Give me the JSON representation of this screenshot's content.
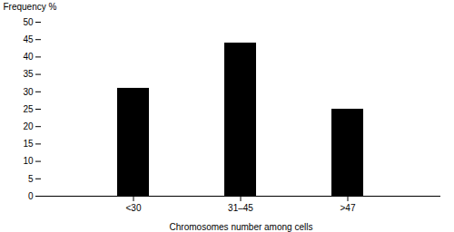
{
  "chart_data": {
    "type": "bar",
    "categories": [
      "<30",
      "31–45",
      ">47"
    ],
    "values": [
      31,
      44,
      25
    ],
    "color": "#000000",
    "xlabel": "Chromosomes number among cells",
    "ylabel": "Frequency %",
    "ylim": [
      0,
      50
    ],
    "yticks": [
      0,
      5,
      10,
      15,
      20,
      25,
      30,
      35,
      40,
      45,
      50
    ],
    "grid": false
  }
}
